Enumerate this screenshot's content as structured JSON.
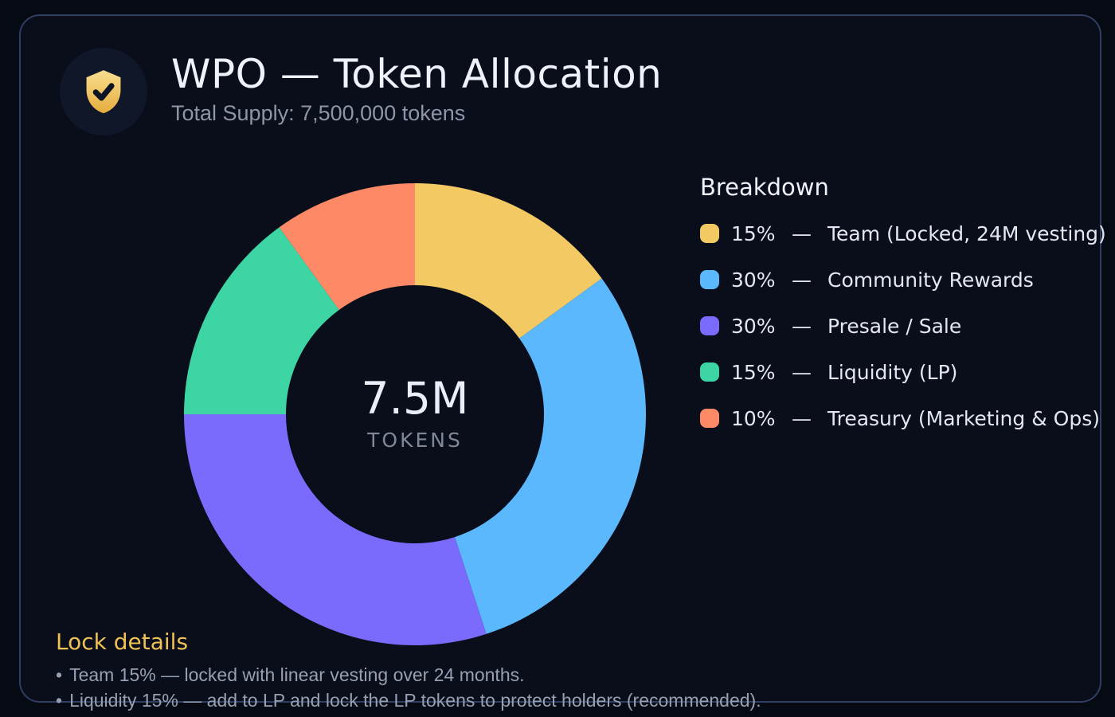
{
  "card": {
    "title": "WPO — Token Allocation",
    "subtitle": "Total Supply: 7,500,000 tokens"
  },
  "icons": {
    "header_badge": "shield-check-icon"
  },
  "chart_data": {
    "type": "pie",
    "donut": true,
    "title": "WPO — Token Allocation",
    "subtitle": "Total Supply: 7,500,000 tokens",
    "total_supply_tokens": 7500000,
    "center_value": "7.5M",
    "center_caption": "TOKENS",
    "start_angle_deg": 0,
    "direction": "clockwise",
    "legend_position": "right",
    "segments": [
      {
        "key": "team",
        "pct": 15,
        "label": "Team (Locked, 24M vesting)",
        "color": "#f3c964"
      },
      {
        "key": "community",
        "pct": 30,
        "label": "Community Rewards",
        "color": "#5cb8fc"
      },
      {
        "key": "presale",
        "pct": 30,
        "label": "Presale / Sale",
        "color": "#7a6bfc"
      },
      {
        "key": "liquidity",
        "pct": 15,
        "label": "Liquidity (LP)",
        "color": "#3cd5a3"
      },
      {
        "key": "treasury",
        "pct": 10,
        "label": "Treasury (Marketing & Ops)",
        "color": "#fd8966"
      }
    ]
  },
  "legend": {
    "heading": "Breakdown",
    "separator": "—"
  },
  "lock_details": {
    "heading": "Lock details",
    "bullet_marker": "•",
    "bullets": [
      "Team 15% — locked with linear vesting over 24 months.",
      "Liquidity 15% — add to LP and lock the LP tokens to protect holders (recommended)."
    ]
  },
  "colors": {
    "background": "#060a13",
    "card_bg": "#0a0e1b",
    "card_border": "#2f3e61",
    "title_color": "#eef2fb",
    "muted": "#8d96a9",
    "gold": "#f0c254",
    "legend_text": "#e2e8f2",
    "bullet_text": "#97a0b3",
    "center_value_color": "#e9eef8",
    "center_caption_color": "#7f8899",
    "badge_bg": "#0f1729"
  }
}
